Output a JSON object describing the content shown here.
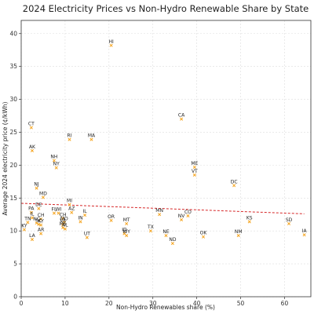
{
  "chart_data": {
    "type": "scatter",
    "title": "2024 Electricity Prices vs Non-Hydro Renewable Share by State",
    "xlabel": "Non-Hydro Renewables share (%)",
    "ylabel": "Average 2024 electricity price (¢/kWh)",
    "xlim": [
      0,
      66
    ],
    "ylim": [
      0,
      42
    ],
    "xticks": [
      0,
      10,
      20,
      30,
      40,
      50,
      60
    ],
    "yticks": [
      0,
      5,
      10,
      15,
      20,
      25,
      30,
      35,
      40
    ],
    "grid": true,
    "marker": "x",
    "point_color": "#f5a623",
    "trendline": {
      "style": "dashed",
      "color": "#d62728",
      "x": [
        0,
        64.5
      ],
      "y": [
        14.2,
        12.6
      ]
    },
    "points": [
      {
        "label": "HI",
        "x": 20.5,
        "y": 38.2
      },
      {
        "label": "CA",
        "x": 36.5,
        "y": 27.0
      },
      {
        "label": "CT",
        "x": 2.3,
        "y": 25.7
      },
      {
        "label": "RI",
        "x": 11.0,
        "y": 23.9
      },
      {
        "label": "MA",
        "x": 16.0,
        "y": 23.9
      },
      {
        "label": "AK",
        "x": 2.5,
        "y": 22.2
      },
      {
        "label": "NH",
        "x": 7.5,
        "y": 20.7
      },
      {
        "label": "NY",
        "x": 8.0,
        "y": 19.6
      },
      {
        "label": "ME",
        "x": 39.5,
        "y": 19.7
      },
      {
        "label": "VT",
        "x": 39.5,
        "y": 18.5
      },
      {
        "label": "DC",
        "x": 48.5,
        "y": 16.9
      },
      {
        "label": "NJ",
        "x": 3.5,
        "y": 16.5
      },
      {
        "label": "MD",
        "x": 5.0,
        "y": 15.1
      },
      {
        "label": "MI",
        "x": 11.0,
        "y": 14.0
      },
      {
        "label": "DE",
        "x": 4.0,
        "y": 13.4
      },
      {
        "label": "PA",
        "x": 2.3,
        "y": 12.8
      },
      {
        "label": "FL",
        "x": 7.5,
        "y": 12.7
      },
      {
        "label": "WI",
        "x": 8.5,
        "y": 12.7
      },
      {
        "label": "AZ",
        "x": 11.5,
        "y": 12.8
      },
      {
        "label": "IL",
        "x": 14.5,
        "y": 12.4
      },
      {
        "label": "MN",
        "x": 31.5,
        "y": 12.5
      },
      {
        "label": "CO",
        "x": 38.0,
        "y": 12.3
      },
      {
        "label": "IL",
        "x": 2.5,
        "y": 12.0
      },
      {
        "label": "CH",
        "x": 4.5,
        "y": 11.8
      },
      {
        "label": "CH",
        "x": 9.5,
        "y": 11.9
      },
      {
        "label": "NV",
        "x": 36.5,
        "y": 11.7
      },
      {
        "label": "KS",
        "x": 52.0,
        "y": 11.4
      },
      {
        "label": "SD",
        "x": 61.0,
        "y": 11.1
      },
      {
        "label": "TN",
        "x": 1.5,
        "y": 11.3
      },
      {
        "label": "NC",
        "x": 3.5,
        "y": 11.2
      },
      {
        "label": "SC",
        "x": 4.0,
        "y": 11.0
      },
      {
        "label": "KY",
        "x": 4.5,
        "y": 10.9
      },
      {
        "label": "VA",
        "x": 9.5,
        "y": 11.0
      },
      {
        "label": "MO",
        "x": 9.8,
        "y": 11.3
      },
      {
        "label": "IN",
        "x": 13.5,
        "y": 11.4
      },
      {
        "label": "OR",
        "x": 20.5,
        "y": 11.6
      },
      {
        "label": "MT",
        "x": 24.0,
        "y": 11.1
      },
      {
        "label": "MS",
        "x": 9.5,
        "y": 10.5
      },
      {
        "label": "AL",
        "x": 10.0,
        "y": 10.3
      },
      {
        "label": "KY",
        "x": 0.7,
        "y": 10.2
      },
      {
        "label": "TX",
        "x": 29.5,
        "y": 10.0
      },
      {
        "label": "AR",
        "x": 4.5,
        "y": 9.6
      },
      {
        "label": "ID",
        "x": 23.5,
        "y": 9.6
      },
      {
        "label": "WY",
        "x": 24.0,
        "y": 9.3
      },
      {
        "label": "NE",
        "x": 33.0,
        "y": 9.3
      },
      {
        "label": "OK",
        "x": 41.5,
        "y": 9.1
      },
      {
        "label": "NM",
        "x": 49.5,
        "y": 9.3
      },
      {
        "label": "IA",
        "x": 64.5,
        "y": 9.4
      },
      {
        "label": "UT",
        "x": 15.0,
        "y": 9.0
      },
      {
        "label": "LA",
        "x": 2.5,
        "y": 8.7
      },
      {
        "label": "ND",
        "x": 34.5,
        "y": 8.1
      }
    ]
  }
}
